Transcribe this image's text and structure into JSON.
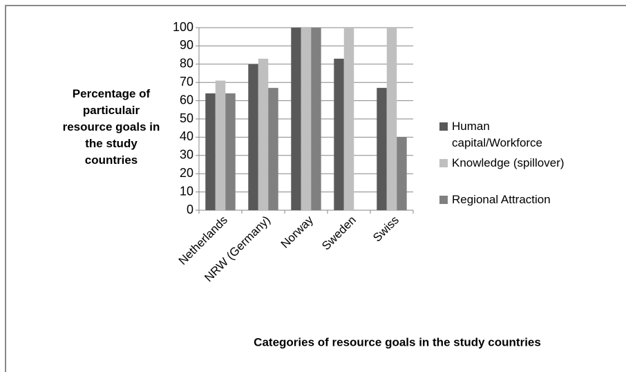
{
  "chart_data": {
    "type": "bar",
    "x_label": "Categories of resource goals in the study countries",
    "y_label": "Percentage of particulair resource goals in the study countries",
    "categories": [
      "Netherlands",
      "NRW (Germany)",
      "Norway",
      "Sweden",
      "Swiss"
    ],
    "series": [
      {
        "name": "Human capital/Workforce",
        "color": "#595959",
        "values": [
          64,
          80,
          100,
          83,
          67
        ]
      },
      {
        "name": "Knowledge (spillover)",
        "color": "#bfbfbf",
        "values": [
          71,
          83,
          100,
          100,
          100
        ]
      },
      {
        "name": "Regional Attraction",
        "color": "#808080",
        "values": [
          64,
          67,
          100,
          0,
          40
        ]
      }
    ],
    "ylim": [
      0,
      100
    ],
    "yticks": [
      0,
      10,
      20,
      30,
      40,
      50,
      60,
      70,
      80,
      90,
      100
    ],
    "grid": true,
    "legend": "right"
  }
}
